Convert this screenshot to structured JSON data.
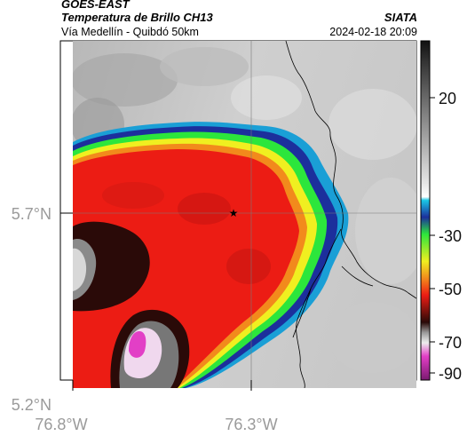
{
  "header": {
    "product": "GOES-EAST",
    "variable": "Temperatura de Brillo CH13",
    "organization": "SIATA",
    "region": "Vía Medellín - Quibdó 50km",
    "datetime": "2024-02-18 20:09"
  },
  "axes": {
    "lat_ticks": [
      "5.7°N",
      "5.2°N"
    ],
    "lon_ticks": [
      "76.8°W",
      "76.3°W"
    ]
  },
  "colorbar": {
    "tick_labels": [
      "20",
      "-30",
      "-50",
      "-70",
      "-90"
    ],
    "colors": {
      "warm_top": "#111111",
      "gray": "#8a8a8a",
      "cyan": "#19c8e6",
      "blue": "#1c2f9c",
      "green": "#2ce63c",
      "yellow": "#f0ef20",
      "orange": "#f28a1c",
      "red": "#ec1c14",
      "dark": "#2a0a08",
      "magenta": "#e23fc6"
    }
  },
  "map": {
    "marker": "star-icon"
  }
}
